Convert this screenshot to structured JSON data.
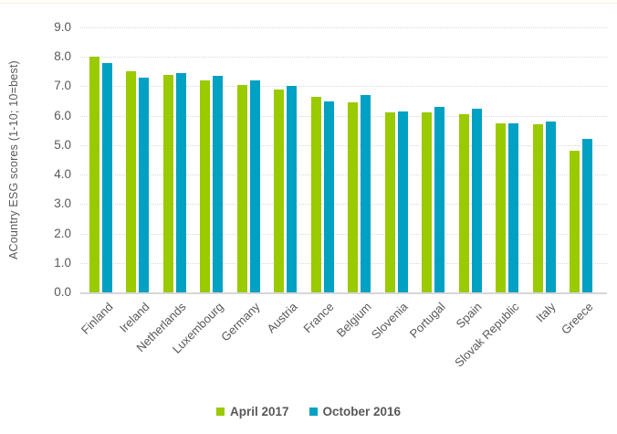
{
  "page": {
    "top_strip_color": "#f7f3dd",
    "background": "#ffffff"
  },
  "chart_data": {
    "type": "bar",
    "title": "",
    "xlabel": "",
    "ylabel": "ACountry ESG scores (1-10; 10=best)",
    "ylim": [
      0,
      9
    ],
    "ytick_labels": [
      "0.0",
      "1.0",
      "2.0",
      "3.0",
      "4.0",
      "5.0",
      "6.0",
      "7.0",
      "8.0",
      "9.0"
    ],
    "grid": true,
    "legend_position": "bottom",
    "categories": [
      "Finland",
      "Ireland",
      "Netherlands",
      "Luxembourg",
      "Germany",
      "Austria",
      "France",
      "Belgium",
      "Slovenia",
      "Portugal",
      "Spain",
      "Slovak Republic",
      "Italy",
      "Greece"
    ],
    "series": [
      {
        "name": "April 2017",
        "color": "#9aca00",
        "values": [
          8.0,
          7.5,
          7.4,
          7.2,
          7.05,
          6.9,
          6.65,
          6.45,
          6.1,
          6.1,
          6.05,
          5.75,
          5.7,
          4.8
        ]
      },
      {
        "name": "October 2016",
        "color": "#00a1c2",
        "values": [
          7.8,
          7.3,
          7.45,
          7.35,
          7.2,
          7.0,
          6.5,
          6.7,
          6.15,
          6.3,
          6.25,
          5.75,
          5.8,
          5.2
        ]
      }
    ],
    "axis_text_color": "#595959",
    "gridline_color": "#d9d9d9",
    "axis_line_color": "#d6d6d6"
  }
}
